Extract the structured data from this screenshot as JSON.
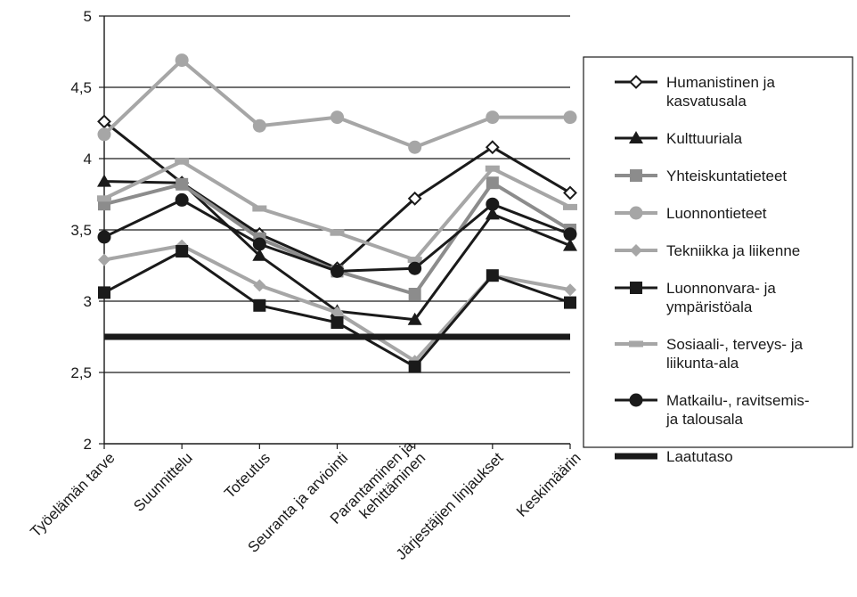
{
  "chart_data": {
    "type": "line",
    "categories": [
      "Työelämän tarve",
      "Suunnittelu",
      "Toteutus",
      "Seuranta ja arviointi",
      [
        "Parantaminen ja",
        "kehittäminen"
      ],
      "Järjestäjien linjaukset",
      "Keskimäärin"
    ],
    "ylim": [
      2,
      5
    ],
    "yticks": [
      "2",
      "2,5",
      "3",
      "3,5",
      "4",
      "4,5",
      "5"
    ],
    "ytick_values": [
      2,
      2.5,
      3,
      3.5,
      4,
      4.5,
      5
    ],
    "grid": true,
    "legend_position": "right",
    "series": [
      {
        "name": [
          "Humanistinen ja",
          "kasvatusala"
        ],
        "values": [
          4.26,
          3.83,
          3.47,
          3.23,
          3.72,
          4.08,
          3.76
        ],
        "color": "#1a1a1a",
        "marker": "diamond-open",
        "width": 3
      },
      {
        "name": [
          "Kulttuuriala"
        ],
        "values": [
          3.84,
          3.83,
          3.32,
          2.93,
          2.87,
          3.61,
          3.39
        ],
        "color": "#1a1a1a",
        "marker": "triangle",
        "width": 3
      },
      {
        "name": [
          "Yhteiskuntatieteet"
        ],
        "values": [
          3.68,
          3.82,
          3.44,
          3.21,
          3.05,
          3.83,
          3.5
        ],
        "color": "#8c8c8c",
        "marker": "square",
        "width": 4
      },
      {
        "name": [
          "Luonnontieteet"
        ],
        "values": [
          4.17,
          4.69,
          4.23,
          4.29,
          4.08,
          4.29,
          4.29
        ],
        "color": "#a6a6a6",
        "marker": "circle",
        "width": 4
      },
      {
        "name": [
          "Tekniikka ja liikenne"
        ],
        "values": [
          3.29,
          3.39,
          3.11,
          2.92,
          2.58,
          3.18,
          3.08
        ],
        "color": "#a6a6a6",
        "marker": "diamond",
        "width": 4
      },
      {
        "name": [
          "Luonnonvara- ja",
          "ympäristöala"
        ],
        "values": [
          3.06,
          3.35,
          2.97,
          2.85,
          2.54,
          3.18,
          2.99
        ],
        "color": "#1a1a1a",
        "marker": "square",
        "width": 3
      },
      {
        "name": [
          "Sosiaali-, terveys- ja",
          "liikunta-ala"
        ],
        "values": [
          3.72,
          3.98,
          3.65,
          3.48,
          3.29,
          3.93,
          3.66
        ],
        "color": "#a6a6a6",
        "marker": "dash",
        "width": 4
      },
      {
        "name": [
          "Matkailu-, ravitsemis-",
          "ja talousala"
        ],
        "values": [
          3.45,
          3.71,
          3.4,
          3.21,
          3.23,
          3.68,
          3.47
        ],
        "color": "#1a1a1a",
        "marker": "circle",
        "width": 3
      },
      {
        "name": [
          "Laatutaso"
        ],
        "values": [
          2.75,
          2.75,
          2.75,
          2.75,
          2.75,
          2.75,
          2.75
        ],
        "color": "#1a1a1a",
        "marker": "none",
        "width": 7
      }
    ]
  }
}
